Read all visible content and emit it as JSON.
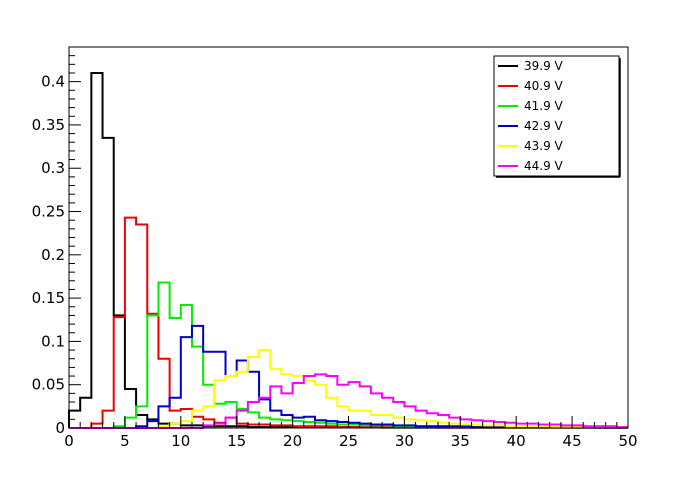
{
  "chart_data": {
    "type": "histogram",
    "title": "",
    "xlabel": "",
    "ylabel": "",
    "xlim": [
      0,
      50
    ],
    "ylim": [
      0,
      0.44
    ],
    "bin_width": 1,
    "x_ticks": [
      "0",
      "5",
      "10",
      "15",
      "20",
      "25",
      "30",
      "35",
      "40",
      "45",
      "50"
    ],
    "y_ticks": [
      "0",
      "0.05",
      "0.1",
      "0.15",
      "0.2",
      "0.25",
      "0.3",
      "0.35",
      "0.4"
    ],
    "grid": false,
    "legend_position": "top-right",
    "series": [
      {
        "name": "39.9 V",
        "color": "#000000",
        "values": [
          0.02,
          0.035,
          0.41,
          0.335,
          0.13,
          0.045,
          0.015,
          0.01,
          0.005,
          0.005,
          0.003,
          0.003,
          0.002,
          0.002,
          0.002,
          0.002,
          0.001,
          0.001,
          0.001,
          0.001,
          0.001,
          0.001,
          0.001,
          0.001,
          0.001,
          0.001,
          0.001,
          0.001,
          0.0005,
          0.0005,
          0.0005,
          0.0005,
          0.0005,
          0.0005,
          0.0005,
          0.0005,
          0.0005,
          0.0005,
          0.0005,
          0.0005,
          0.0005,
          0.0005,
          0.0005,
          0.0005,
          0.0005,
          0.0005,
          0.0005,
          0.0005,
          0.0005,
          0.0005
        ]
      },
      {
        "name": "40.9 V",
        "color": "#ee0000",
        "values": [
          0,
          0,
          0.005,
          0.02,
          0.128,
          0.243,
          0.235,
          0.132,
          0.08,
          0.02,
          0.022,
          0.013,
          0.01,
          0.006,
          0.012,
          0.005,
          0.004,
          0.004,
          0.003,
          0.003,
          0.002,
          0.002,
          0.002,
          0.002,
          0.001,
          0.001,
          0.001,
          0.001,
          0.001,
          0.001,
          0.001,
          0.001,
          0.001,
          0.0005,
          0.0005,
          0.0005,
          0.0005,
          0.0005,
          0.0005,
          0.0005,
          0.0005,
          0.0005,
          0.0005,
          0.0005,
          0.0005,
          0.0005,
          0.0005,
          0.0005,
          0.0005,
          0.0005
        ]
      },
      {
        "name": "41.9 V",
        "color": "#00ee00",
        "values": [
          0,
          0,
          0,
          0,
          0.002,
          0.012,
          0.025,
          0.13,
          0.168,
          0.127,
          0.142,
          0.094,
          0.05,
          0.028,
          0.03,
          0.022,
          0.018,
          0.012,
          0.01,
          0.009,
          0.008,
          0.007,
          0.006,
          0.005,
          0.004,
          0.004,
          0.003,
          0.003,
          0.003,
          0.002,
          0.002,
          0.002,
          0.002,
          0.002,
          0.001,
          0.001,
          0.001,
          0.001,
          0.001,
          0.001,
          0.001,
          0.001,
          0.001,
          0.001,
          0.001,
          0.0005,
          0.0005,
          0.0005,
          0.0005,
          0.0005
        ]
      },
      {
        "name": "42.9 V",
        "color": "#0000cc",
        "values": [
          0,
          0,
          0,
          0,
          0,
          0,
          0.002,
          0.008,
          0.025,
          0.035,
          0.105,
          0.118,
          0.088,
          0.088,
          0.06,
          0.078,
          0.065,
          0.033,
          0.02,
          0.015,
          0.012,
          0.013,
          0.009,
          0.008,
          0.007,
          0.006,
          0.005,
          0.004,
          0.004,
          0.003,
          0.003,
          0.002,
          0.002,
          0.002,
          0.002,
          0.002,
          0.001,
          0.001,
          0.001,
          0.001,
          0.001,
          0.001,
          0.001,
          0.001,
          0.001,
          0.001,
          0.001,
          0.0005,
          0.0005,
          0.0005
        ]
      },
      {
        "name": "43.9 V",
        "color": "#ffff00",
        "values": [
          0,
          0,
          0,
          0,
          0,
          0,
          0,
          0,
          0.002,
          0.005,
          0.008,
          0.02,
          0.025,
          0.055,
          0.06,
          0.065,
          0.082,
          0.09,
          0.068,
          0.062,
          0.06,
          0.055,
          0.05,
          0.035,
          0.025,
          0.02,
          0.02,
          0.015,
          0.015,
          0.012,
          0.01,
          0.009,
          0.008,
          0.006,
          0.005,
          0.004,
          0.004,
          0.003,
          0.003,
          0.002,
          0.002,
          0.002,
          0.002,
          0.001,
          0.001,
          0.001,
          0.001,
          0.001,
          0.001,
          0.001
        ]
      },
      {
        "name": "44.9 V",
        "color": "#ff00ff",
        "values": [
          0,
          0,
          0,
          0,
          0,
          0,
          0,
          0,
          0,
          0,
          0,
          0,
          0.003,
          0.005,
          0.012,
          0.02,
          0.03,
          0.035,
          0.048,
          0.04,
          0.052,
          0.06,
          0.062,
          0.06,
          0.05,
          0.053,
          0.048,
          0.04,
          0.035,
          0.03,
          0.025,
          0.02,
          0.017,
          0.015,
          0.012,
          0.01,
          0.009,
          0.008,
          0.007,
          0.006,
          0.005,
          0.005,
          0.004,
          0.004,
          0.003,
          0.003,
          0.002,
          0.002,
          0.002,
          0.001
        ]
      }
    ]
  }
}
